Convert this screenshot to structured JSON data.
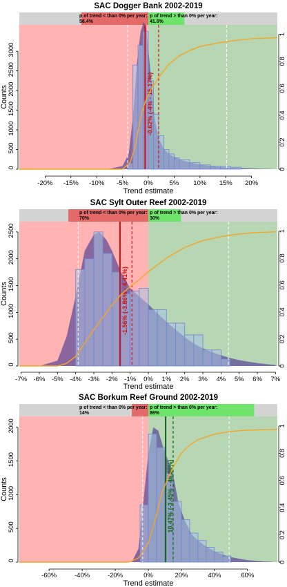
{
  "chart_data": [
    {
      "type": "bar",
      "title": "SAC Dogger Bank 2002-2019",
      "xlabel": "Trend estimate",
      "ylabel": "Counts",
      "xlim": [
        -25,
        25
      ],
      "ylim": [
        0,
        3600
      ],
      "y2lim": [
        0,
        1.05
      ],
      "x_ticks": [
        -20,
        -15,
        -10,
        -5,
        0,
        5,
        10,
        15,
        20
      ],
      "x_tick_labels": [
        "-20%",
        "-15%",
        "-10%",
        "-5%",
        "0%",
        "5%",
        "10%",
        "15%",
        "20%"
      ],
      "y_ticks": [
        0,
        500,
        1000,
        1500,
        2000,
        2500,
        3000
      ],
      "y2_ticks": [
        0,
        0.2,
        0.4,
        0.6,
        0.8,
        1
      ],
      "band": {
        "neg_label": "p of trend < than 0% per year:",
        "neg_value": "58.4%",
        "pos_label": "p of trend > than 0% per year:",
        "pos_value": "41.6%",
        "neg_start": -13,
        "pos_end": 7
      },
      "bins": [
        {
          "x0": -5,
          "x1": -4,
          "count": 0
        },
        {
          "x0": -4,
          "x1": -3,
          "count": 150
        },
        {
          "x0": -3,
          "x1": -2,
          "count": 2650
        },
        {
          "x0": -2,
          "x1": -1,
          "count": 3150
        },
        {
          "x0": -1,
          "x1": 0,
          "count": 3500
        },
        {
          "x0": 0,
          "x1": 1,
          "count": 2250
        },
        {
          "x0": 1,
          "x1": 2,
          "count": 1400
        },
        {
          "x0": 2,
          "x1": 3,
          "count": 850
        },
        {
          "x0": 3,
          "x1": 4,
          "count": 500
        },
        {
          "x0": 4,
          "x1": 5,
          "count": 390
        },
        {
          "x0": 5,
          "x1": 6,
          "count": 290
        },
        {
          "x0": 6,
          "x1": 8,
          "count": 240
        },
        {
          "x0": 8,
          "x1": 10,
          "count": 170
        },
        {
          "x0": 10,
          "x1": 12,
          "count": 110
        },
        {
          "x0": 12,
          "x1": 14,
          "count": 80
        },
        {
          "x0": 14,
          "x1": 16,
          "count": 70
        },
        {
          "x0": 16,
          "x1": 18,
          "count": 50
        }
      ],
      "density": [
        [
          -8,
          0
        ],
        [
          -5,
          80
        ],
        [
          -3.8,
          400
        ],
        [
          -3,
          1300
        ],
        [
          -2.2,
          2700
        ],
        [
          -1.5,
          3500
        ],
        [
          -0.9,
          3750
        ],
        [
          -0.4,
          3600
        ],
        [
          0.4,
          2500
        ],
        [
          1.2,
          1300
        ],
        [
          2,
          780
        ],
        [
          3,
          520
        ],
        [
          4,
          380
        ],
        [
          6,
          250
        ],
        [
          8,
          170
        ],
        [
          10,
          120
        ],
        [
          12,
          80
        ],
        [
          14,
          55
        ],
        [
          16,
          40
        ],
        [
          18,
          28
        ],
        [
          20,
          18
        ],
        [
          22,
          10
        ],
        [
          24,
          5
        ]
      ],
      "cdf": [
        [
          -25,
          0
        ],
        [
          -5,
          0
        ],
        [
          -3.5,
          0.05
        ],
        [
          -2.5,
          0.18
        ],
        [
          -1.5,
          0.38
        ],
        [
          -0.6,
          0.5
        ],
        [
          0.5,
          0.59
        ],
        [
          2,
          0.68
        ],
        [
          4,
          0.78
        ],
        [
          6,
          0.84
        ],
        [
          8,
          0.88
        ],
        [
          10,
          0.91
        ],
        [
          14,
          0.94
        ],
        [
          18,
          0.96
        ],
        [
          21,
          0.97
        ],
        [
          25,
          0.975
        ]
      ],
      "median": -0.62,
      "ci": [
        -4,
        15.17
      ],
      "ci_dashed": [
        2
      ],
      "ci_light_dashed": [
        -4,
        15.17
      ],
      "annotation": "-0.62% (-4% - 15.17%)",
      "colors": {
        "median": "#cc1111",
        "ci": "#cc1111",
        "annotation": "#cc1111"
      }
    },
    {
      "type": "bar",
      "title": "SAC Sylt Outer Reef 2002-2019",
      "xlabel": "Trend estimate",
      "ylabel": "Counts",
      "xlim": [
        -7.1,
        7.1
      ],
      "ylim": [
        0,
        2640
      ],
      "y2lim": [
        0,
        1.05
      ],
      "x_ticks": [
        -7,
        -6,
        -5,
        -4,
        -3,
        -2,
        -1,
        0,
        1,
        2,
        3,
        4,
        5,
        6,
        7
      ],
      "x_tick_labels": [
        "-7%",
        "-6%",
        "-5%",
        "-4%",
        "-3%",
        "-2%",
        "-1%",
        "0%",
        "1%",
        "2%",
        "3%",
        "4%",
        "5%",
        "6%",
        "7%"
      ],
      "y_ticks": [
        0,
        500,
        1000,
        1500,
        2000,
        2500
      ],
      "y2_ticks": [
        0,
        0.2,
        0.4,
        0.6,
        0.8,
        1
      ],
      "band": {
        "neg_label": "p of trend < than 0% per year:",
        "neg_value": "70%",
        "pos_label": "p of trend > than 0% per year:",
        "pos_value": "30%",
        "neg_start": -4.4,
        "pos_end": 1.8
      },
      "bins": [
        {
          "x0": -4,
          "x1": -3.5,
          "count": 1800
        },
        {
          "x0": -3.5,
          "x1": -3,
          "count": 2000
        },
        {
          "x0": -3,
          "x1": -2.5,
          "count": 2500
        },
        {
          "x0": -2.5,
          "x1": -2,
          "count": 2100
        },
        {
          "x0": -2,
          "x1": -1.5,
          "count": 1750
        },
        {
          "x0": -1.5,
          "x1": -1,
          "count": 1350
        },
        {
          "x0": -1,
          "x1": -0.5,
          "count": 1400
        },
        {
          "x0": -0.5,
          "x1": 0,
          "count": 1450
        },
        {
          "x0": 0,
          "x1": 0.5,
          "count": 1050
        },
        {
          "x0": 0.5,
          "x1": 1,
          "count": 1050
        },
        {
          "x0": 1,
          "x1": 1.5,
          "count": 800
        },
        {
          "x0": 1.5,
          "x1": 2,
          "count": 800
        },
        {
          "x0": 2,
          "x1": 2.5,
          "count": 580
        },
        {
          "x0": 2.5,
          "x1": 3,
          "count": 580
        },
        {
          "x0": 3,
          "x1": 3.5,
          "count": 300
        },
        {
          "x0": 3.5,
          "x1": 4,
          "count": 300
        },
        {
          "x0": 4,
          "x1": 4.5,
          "count": 130
        }
      ],
      "density": [
        [
          -7,
          0
        ],
        [
          -6,
          0
        ],
        [
          -5,
          100
        ],
        [
          -4.5,
          550
        ],
        [
          -4,
          1300
        ],
        [
          -3.5,
          2150
        ],
        [
          -3,
          2450
        ],
        [
          -2.7,
          2500
        ],
        [
          -2.3,
          2350
        ],
        [
          -2,
          2150
        ],
        [
          -1.5,
          1750
        ],
        [
          -1,
          1450
        ],
        [
          -0.5,
          1300
        ],
        [
          0,
          1150
        ],
        [
          0.5,
          980
        ],
        [
          1,
          820
        ],
        [
          1.5,
          680
        ],
        [
          2,
          540
        ],
        [
          2.5,
          420
        ],
        [
          3,
          330
        ],
        [
          3.5,
          260
        ],
        [
          4,
          200
        ],
        [
          4.5,
          150
        ],
        [
          5,
          110
        ],
        [
          5.5,
          80
        ],
        [
          6,
          55
        ],
        [
          6.5,
          35
        ],
        [
          7,
          20
        ]
      ],
      "cdf": [
        [
          -7.1,
          0
        ],
        [
          -5,
          0
        ],
        [
          -4.5,
          0.02
        ],
        [
          -4,
          0.07
        ],
        [
          -3.5,
          0.17
        ],
        [
          -3,
          0.27
        ],
        [
          -2.5,
          0.36
        ],
        [
          -2,
          0.45
        ],
        [
          -1.5,
          0.53
        ],
        [
          -1,
          0.59
        ],
        [
          -0.5,
          0.64
        ],
        [
          0,
          0.7
        ],
        [
          0.5,
          0.75
        ],
        [
          1,
          0.8
        ],
        [
          1.5,
          0.84
        ],
        [
          2,
          0.88
        ],
        [
          3,
          0.93
        ],
        [
          4,
          0.96
        ],
        [
          5,
          0.98
        ],
        [
          6,
          0.99
        ],
        [
          7,
          0.995
        ]
      ],
      "median": -1.56,
      "ci": [
        -3.86,
        4.41
      ],
      "ci_dashed": [
        -0.9
      ],
      "ci_light_dashed": [
        -3.86,
        4.41
      ],
      "annotation": "-1.56% (-3.86% - 4.41%)",
      "colors": {
        "median": "#cc1111",
        "ci": "#cc1111",
        "annotation": "#cc1111"
      }
    },
    {
      "type": "bar",
      "title": "SAC Borkum Reef Ground 2002-2019",
      "xlabel": "Trend estimate",
      "ylabel": "Counts",
      "xlim": [
        -78,
        78
      ],
      "ylim": [
        0,
        2120
      ],
      "y2lim": [
        0,
        1.05
      ],
      "x_ticks": [
        -60,
        -40,
        -20,
        0,
        20,
        40,
        60
      ],
      "x_tick_labels": [
        "-60%",
        "-40%",
        "-20%",
        "0%",
        "20%",
        "40%",
        "60%"
      ],
      "y_ticks": [
        0,
        500,
        1000,
        1500,
        2000
      ],
      "y2_ticks": [
        0,
        0.2,
        0.4,
        0.6,
        0.8,
        1
      ],
      "band": {
        "neg_label": "p of trend < than 0% per year:",
        "neg_value": "14%",
        "pos_label": "p of trend > than 0% per year:",
        "pos_value": "86%",
        "neg_start": -10,
        "pos_end": 64
      },
      "bins": [
        {
          "x0": -5,
          "x1": 0,
          "count": 850
        },
        {
          "x0": 0,
          "x1": 5,
          "count": 1900
        },
        {
          "x0": 5,
          "x1": 10,
          "count": 1700
        },
        {
          "x0": 10,
          "x1": 15,
          "count": 1320
        },
        {
          "x0": 15,
          "x1": 20,
          "count": 900
        },
        {
          "x0": 20,
          "x1": 25,
          "count": 630
        },
        {
          "x0": 25,
          "x1": 30,
          "count": 430
        },
        {
          "x0": 30,
          "x1": 35,
          "count": 320
        },
        {
          "x0": 35,
          "x1": 40,
          "count": 220
        },
        {
          "x0": 40,
          "x1": 45,
          "count": 150
        },
        {
          "x0": 45,
          "x1": 50,
          "count": 90
        }
      ],
      "density": [
        [
          -30,
          0
        ],
        [
          -10,
          0
        ],
        [
          -6,
          200
        ],
        [
          -3,
          900
        ],
        [
          0,
          1600
        ],
        [
          3,
          2000
        ],
        [
          6,
          1950
        ],
        [
          9,
          1700
        ],
        [
          12,
          1500
        ],
        [
          15,
          1300
        ],
        [
          18,
          900
        ],
        [
          22,
          620
        ],
        [
          26,
          420
        ],
        [
          30,
          320
        ],
        [
          35,
          230
        ],
        [
          40,
          160
        ],
        [
          45,
          110
        ],
        [
          50,
          75
        ],
        [
          55,
          50
        ],
        [
          60,
          30
        ],
        [
          65,
          20
        ],
        [
          70,
          10
        ],
        [
          75,
          5
        ]
      ],
      "cdf": [
        [
          -78,
          0
        ],
        [
          -12,
          0
        ],
        [
          -6,
          0.03
        ],
        [
          -2,
          0.1
        ],
        [
          0,
          0.14
        ],
        [
          4,
          0.3
        ],
        [
          8,
          0.5
        ],
        [
          12,
          0.62
        ],
        [
          16,
          0.72
        ],
        [
          20,
          0.8
        ],
        [
          25,
          0.86
        ],
        [
          30,
          0.9
        ],
        [
          40,
          0.94
        ],
        [
          50,
          0.96
        ],
        [
          60,
          0.97
        ],
        [
          78,
          0.975
        ]
      ],
      "median": 10.47,
      "ci": [
        -3.45,
        48.89
      ],
      "ci_dashed": [
        15
      ],
      "ci_light_dashed": [
        -3.45,
        48.89
      ],
      "annotation": "10.47% (-3.45% - 48.89%)",
      "colors": {
        "median": "#116611",
        "ci": "#116611",
        "annotation": "#116611"
      }
    }
  ],
  "colors": {
    "neg_zone": "#ffb3b3",
    "pos_zone": "#b7d6b3",
    "band_bg": "#d3d3d3",
    "band_neg": "#e46a6a",
    "band_pos": "#6ee46a",
    "density_fill": "#5b4a95",
    "bin_fill": "#a7c4e6",
    "bin_stroke": "#6c86d4",
    "cdf": "#f5a623"
  }
}
